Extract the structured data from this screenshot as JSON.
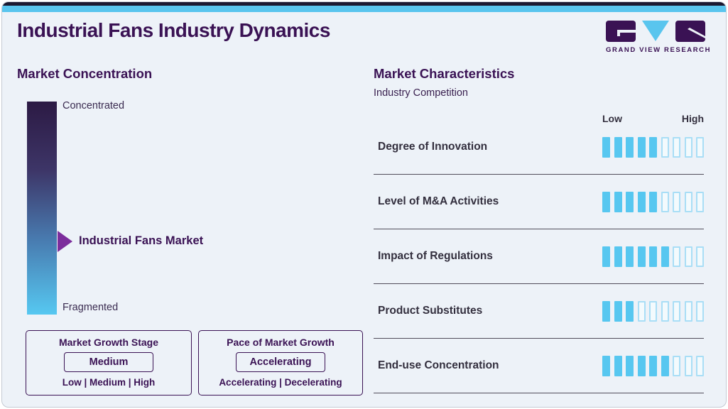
{
  "page": {
    "title": "Industrial Fans Industry Dynamics"
  },
  "logo": {
    "icon": "gvr-logo",
    "brand": "GRAND VIEW RESEARCH"
  },
  "colors": {
    "brand_purple": "#3a1254",
    "accent_cyan": "#57c7f0",
    "empty_segment_border": "#a9def6",
    "arrow_purple": "#7c2d9c",
    "top_strip_navy": "#1b1931",
    "top_strip_cyan": "#59c5ee",
    "card_background": "#edf2f8"
  },
  "market_concentration": {
    "heading": "Market Concentration",
    "scale_top": "Concentrated",
    "scale_bottom": "Fragmented",
    "marker_label": "Industrial Fans Market"
  },
  "growth_boxes": [
    {
      "title": "Market Growth Stage",
      "selected": "Medium",
      "options": "Low | Medium | High"
    },
    {
      "title": "Pace of Market Growth",
      "selected": "Accelerating",
      "options": "Accelerating | Decelerating"
    }
  ],
  "market_characteristics": {
    "heading": "Market Characteristics",
    "subheading": "Industry Competition",
    "scale_low": "Low",
    "scale_high": "High",
    "rows": [
      {
        "label": "Degree of Innovation",
        "filled": 5,
        "total": 9
      },
      {
        "label": "Level of M&A Activities",
        "filled": 5,
        "total": 9
      },
      {
        "label": "Impact of Regulations",
        "filled": 6,
        "total": 9
      },
      {
        "label": "Product Substitutes",
        "filled": 3,
        "total": 9
      },
      {
        "label": "End-use Concentration",
        "filled": 6,
        "total": 9
      }
    ]
  },
  "chart_data": {
    "type": "bar",
    "title": "Market Characteristics — Industry Competition",
    "categories": [
      "Degree of Innovation",
      "Level of M&A Activities",
      "Impact of Regulations",
      "Product Substitutes",
      "End-use Concentration"
    ],
    "values": [
      5,
      5,
      6,
      3,
      6
    ],
    "value_scale": {
      "segments_total": 9,
      "min_label": "Low",
      "max_label": "High"
    },
    "legend_position": "none",
    "annotations": {
      "market_concentration_scale": [
        "Concentrated",
        "Fragmented"
      ],
      "market_concentration_marker": "Industrial Fans Market",
      "market_concentration_marker_position": "closer to Fragmented (about two-thirds down the scale)",
      "market_growth_stage": "Medium",
      "market_growth_stage_options": [
        "Low",
        "Medium",
        "High"
      ],
      "pace_of_market_growth": "Accelerating",
      "pace_of_market_growth_options": [
        "Accelerating",
        "Decelerating"
      ]
    }
  }
}
